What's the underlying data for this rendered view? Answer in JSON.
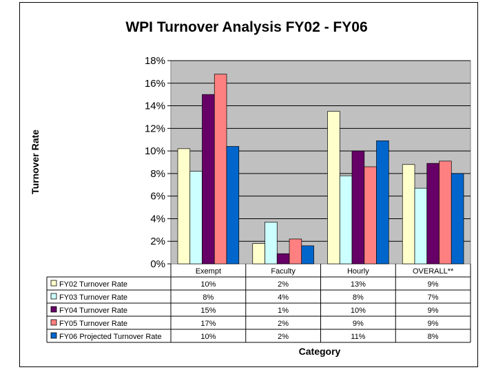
{
  "chart_data": {
    "type": "bar",
    "title": "WPI Turnover Analysis FY02 - FY06",
    "xlabel": "Category",
    "ylabel": "Turnover Rate",
    "ylim": [
      0,
      18
    ],
    "y_ticks": [
      "0%",
      "2%",
      "4%",
      "6%",
      "8%",
      "10%",
      "12%",
      "14%",
      "16%",
      "18%"
    ],
    "grid": true,
    "legend": "data-table",
    "categories": [
      "Exempt",
      "Faculty",
      "Hourly",
      "OVERALL**"
    ],
    "series": [
      {
        "name": "FY02 Turnover Rate",
        "color": "#ffffcc",
        "values": [
          10.2,
          1.8,
          13.5,
          8.8
        ],
        "labels": [
          "10%",
          "2%",
          "13%",
          "9%"
        ]
      },
      {
        "name": "FY03 Turnover Rate",
        "color": "#ccffff",
        "values": [
          8.2,
          3.7,
          7.8,
          6.7
        ],
        "labels": [
          "8%",
          "4%",
          "8%",
          "7%"
        ]
      },
      {
        "name": "FY04 Turnover Rate",
        "color": "#660066",
        "values": [
          15.0,
          0.9,
          10.0,
          8.9
        ],
        "labels": [
          "15%",
          "1%",
          "10%",
          "9%"
        ]
      },
      {
        "name": "FY05 Turnover Rate",
        "color": "#ff8080",
        "values": [
          16.8,
          2.2,
          8.6,
          9.1
        ],
        "labels": [
          "17%",
          "2%",
          "9%",
          "9%"
        ]
      },
      {
        "name": "FY06 Projected Turnover Rate",
        "color": "#0066cc",
        "values": [
          10.4,
          1.6,
          10.9,
          8.0
        ],
        "labels": [
          "10%",
          "2%",
          "11%",
          "8%"
        ]
      }
    ],
    "plot_bg": "#c0c0c0"
  }
}
